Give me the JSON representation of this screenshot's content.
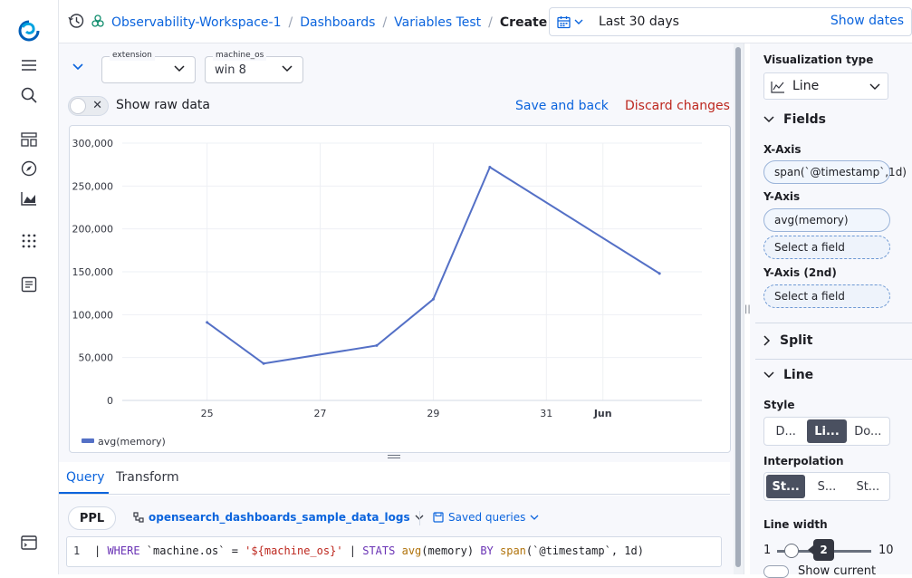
{
  "header": {
    "breadcrumbs": [
      "Observability-Workspace-1",
      "Dashboards",
      "Variables Test"
    ],
    "current": "Create",
    "separator": "/",
    "date_range": "Last 30 days",
    "show_dates": "Show dates"
  },
  "variables": [
    {
      "label": "extension",
      "value": ""
    },
    {
      "label": "machine_os",
      "value": "win 8"
    }
  ],
  "toolbar": {
    "raw_data_label": "Show raw data",
    "save_label": "Save and back",
    "discard_label": "Discard changes"
  },
  "chart_data": {
    "type": "line",
    "title": "",
    "x": [
      "2024-05-25",
      "2024-05-26",
      "2024-05-28",
      "2024-05-29",
      "2024-05-30",
      "2024-06-02"
    ],
    "series": [
      {
        "name": "avg(memory)",
        "values": [
          91000,
          43000,
          64000,
          118000,
          272000,
          148000
        ]
      }
    ],
    "x_ticks": [
      "25",
      "27",
      "29",
      "31",
      "Jun"
    ],
    "y_ticks": [
      "0",
      "50,000",
      "100,000",
      "150,000",
      "200,000",
      "250,000",
      "300,000"
    ],
    "ylim": [
      0,
      300000
    ],
    "xlabel": "",
    "ylabel": "",
    "grid": true,
    "legend": "bottom-left",
    "line_color": "#5470c6"
  },
  "query": {
    "tabs": [
      "Query",
      "Transform"
    ],
    "language": "PPL",
    "dataset": "opensearch_dashboards_sample_data_logs",
    "saved_queries": "Saved queries",
    "line_number": "1",
    "tokens": {
      "pipe1": "| ",
      "where": "WHERE",
      "field": " `machine.os` = ",
      "value": "'${machine_os}'",
      "pipe2": " | ",
      "stats": "STATS",
      "sp1": " ",
      "avg": "avg",
      "mem": "(memory) ",
      "by": "BY",
      "sp2": " ",
      "span": "span",
      "rest": "(`@timestamp`, 1d)"
    }
  },
  "config": {
    "vis_type_label": "Visualization type",
    "vis_type_value": "Line",
    "fields_title": "Fields",
    "x_axis_label": "X-Axis",
    "x_axis_field": "span(`@timestamp`,1d)",
    "y_axis_label": "Y-Axis",
    "y_axis_field": "avg(memory)",
    "y_axis_placeholder": "Select a field",
    "y2_axis_label": "Y-Axis (2nd)",
    "y2_axis_placeholder": "Select a field",
    "split_title": "Split",
    "line_title": "Line",
    "style_label": "Style",
    "style_options": [
      "D...",
      "Li...",
      "Do..."
    ],
    "style_selected": 1,
    "interp_label": "Interpolation",
    "interp_options": [
      "St...",
      "S...",
      "St..."
    ],
    "interp_selected": 0,
    "line_width_label": "Line width",
    "line_width_min": "1",
    "line_width_max": "10",
    "line_width_value": "2",
    "show_current_label": "Show current"
  }
}
